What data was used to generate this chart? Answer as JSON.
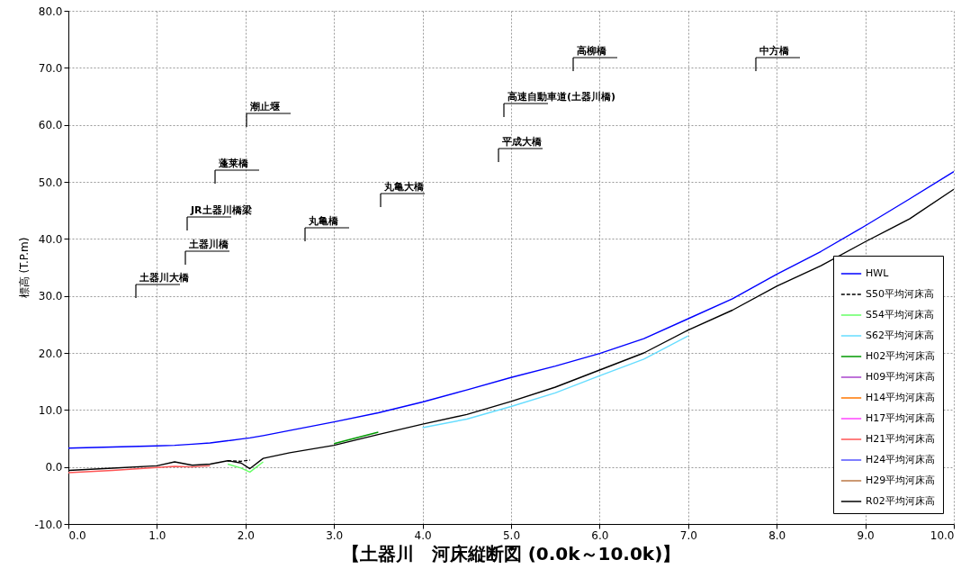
{
  "chart_data": {
    "type": "line",
    "title": "【土器川　河床縦断図 (0.0k～10.0k)】",
    "ylabel": "標高 (T.P.m)",
    "x": [
      0,
      0.5,
      1.0,
      1.2,
      1.4,
      1.6,
      1.8,
      1.95,
      2.05,
      2.2,
      2.5,
      3,
      3.5,
      4,
      4.5,
      5,
      5.5,
      6,
      6.5,
      7,
      7.5,
      8,
      8.5,
      9,
      9.5,
      10
    ],
    "xlim": [
      0,
      10
    ],
    "ylim": [
      -10,
      80
    ],
    "xticks": [
      {
        "value": 0,
        "label": "0.0"
      },
      {
        "value": 1,
        "label": "1.0"
      },
      {
        "value": 2,
        "label": "2.0"
      },
      {
        "value": 3,
        "label": "3.0"
      },
      {
        "value": 4,
        "label": "4.0"
      },
      {
        "value": 5,
        "label": "5.0"
      },
      {
        "value": 6,
        "label": "6.0"
      },
      {
        "value": 7,
        "label": "7.0"
      },
      {
        "value": 8,
        "label": "8.0"
      },
      {
        "value": 9,
        "label": "9.0"
      },
      {
        "value": 10,
        "label": "10.0"
      }
    ],
    "yticks": [
      {
        "value": -10,
        "label": "-10.0"
      },
      {
        "value": 0,
        "label": "0.0"
      },
      {
        "value": 10,
        "label": "10.0"
      },
      {
        "value": 20,
        "label": "20.0"
      },
      {
        "value": 30,
        "label": "30.0"
      },
      {
        "value": 40,
        "label": "40.0"
      },
      {
        "value": 50,
        "label": "50.0"
      },
      {
        "value": 60,
        "label": "60.0"
      },
      {
        "value": 70,
        "label": "70.0"
      },
      {
        "value": 80,
        "label": "80.0"
      }
    ],
    "grid": true,
    "legend": "bottom right",
    "series": [
      {
        "name": "HWL",
        "color": "#0000ff",
        "line_style": "solid",
        "values": [
          3.3,
          3.5,
          3.7,
          3.8,
          4.0,
          4.2,
          4.6,
          4.9,
          5.1,
          5.5,
          6.4,
          7.9,
          9.5,
          11.4,
          13.5,
          15.7,
          17.7,
          19.9,
          22.5,
          26.0,
          29.5,
          33.8,
          37.8,
          42.3,
          47.0,
          51.8
        ]
      },
      {
        "name": "S50平均河床高",
        "color": "#000000",
        "line_style": "dashed",
        "values": [
          null,
          null,
          null,
          null,
          null,
          null,
          1.1,
          1.0,
          1.2,
          null,
          null,
          null,
          null,
          null,
          null,
          null,
          null,
          null,
          null,
          null,
          null,
          null,
          null,
          null,
          null,
          null
        ]
      },
      {
        "name": "S54平均河床高",
        "color": "#66ff66",
        "line_style": "solid",
        "values": [
          null,
          null,
          null,
          null,
          null,
          null,
          0.5,
          -0.2,
          -0.9,
          0.9,
          null,
          null,
          null,
          null,
          null,
          null,
          null,
          null,
          null,
          null,
          null,
          null,
          null,
          null,
          null,
          null
        ]
      },
      {
        "name": "S62平均河床高",
        "color": "#66ddff",
        "line_style": "solid",
        "values": [
          null,
          null,
          null,
          null,
          null,
          null,
          null,
          null,
          null,
          null,
          null,
          null,
          null,
          6.9,
          8.4,
          10.6,
          13.0,
          16.0,
          18.9,
          23.0,
          null,
          null,
          null,
          null,
          null,
          null
        ]
      },
      {
        "name": "H02平均河床高",
        "color": "#009900",
        "line_style": "solid",
        "values": [
          null,
          null,
          null,
          null,
          null,
          null,
          null,
          null,
          null,
          null,
          null,
          4.1,
          6.1,
          null,
          null,
          null,
          null,
          null,
          null,
          null,
          null,
          null,
          null,
          null,
          null,
          null
        ]
      },
      {
        "name": "H09平均河床高",
        "color": "#aa44cc",
        "line_style": "solid",
        "values": [
          null,
          null,
          null,
          null,
          null,
          null,
          null,
          null,
          null,
          null,
          null,
          null,
          null,
          null,
          null,
          null,
          null,
          null,
          null,
          null,
          null,
          null,
          null,
          null,
          null,
          null
        ]
      },
      {
        "name": "H14平均河床高",
        "color": "#ff7700",
        "line_style": "solid",
        "values": [
          null,
          null,
          null,
          null,
          null,
          null,
          null,
          null,
          null,
          null,
          null,
          null,
          null,
          null,
          null,
          null,
          null,
          null,
          null,
          null,
          null,
          null,
          null,
          null,
          null,
          null
        ]
      },
      {
        "name": "H17平均河床高",
        "color": "#ff44ff",
        "line_style": "solid",
        "values": [
          null,
          null,
          null,
          null,
          null,
          null,
          null,
          null,
          null,
          null,
          null,
          null,
          null,
          null,
          null,
          null,
          null,
          null,
          null,
          null,
          null,
          null,
          null,
          null,
          null,
          null
        ]
      },
      {
        "name": "H21平均河床高",
        "color": "#ff5555",
        "line_style": "solid",
        "values": [
          -1.0,
          -0.6,
          -0.1,
          0.1,
          0.0,
          0.2,
          null,
          null,
          null,
          null,
          null,
          null,
          null,
          null,
          null,
          null,
          null,
          null,
          null,
          null,
          null,
          null,
          null,
          null,
          null,
          null
        ]
      },
      {
        "name": "H24平均河床高",
        "color": "#5555ff",
        "line_style": "solid",
        "values": [
          null,
          null,
          null,
          null,
          null,
          null,
          null,
          null,
          null,
          null,
          null,
          null,
          null,
          null,
          null,
          null,
          null,
          null,
          null,
          null,
          null,
          null,
          null,
          null,
          null,
          null
        ]
      },
      {
        "name": "H29平均河床高",
        "color": "#bb7744",
        "line_style": "solid",
        "values": [
          null,
          null,
          null,
          null,
          null,
          null,
          null,
          null,
          null,
          null,
          null,
          null,
          null,
          null,
          null,
          null,
          null,
          null,
          null,
          null,
          null,
          null,
          null,
          null,
          null,
          null
        ]
      },
      {
        "name": "R02平均河床高",
        "color": "#000000",
        "line_style": "solid",
        "values": [
          -0.6,
          -0.2,
          0.2,
          0.9,
          0.3,
          0.5,
          1.1,
          0.7,
          -0.3,
          1.5,
          2.5,
          3.8,
          5.7,
          7.5,
          9.2,
          11.5,
          14.0,
          17.0,
          20.0,
          24.0,
          27.5,
          31.7,
          35.3,
          39.5,
          43.5,
          48.7
        ]
      }
    ],
    "annotations": [
      "土器川大橋",
      "土器川橋",
      "JR土器川橋梁",
      "蓬莱橋",
      "潮止堰",
      "丸亀橋",
      "丸亀大橋",
      "平成大橋",
      "高速自動車道(土器川橋)",
      "高柳橋",
      "中方橋"
    ]
  }
}
